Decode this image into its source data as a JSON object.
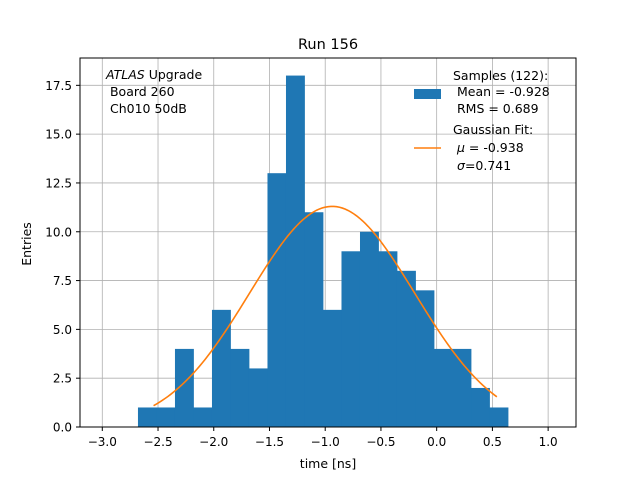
{
  "chart_data": {
    "type": "bar",
    "title": "Run 156",
    "xlabel": "time [ns]",
    "ylabel": "Entries",
    "xlim": [
      -3.2,
      1.25
    ],
    "ylim": [
      0,
      18.9
    ],
    "grid": true,
    "x_ticks": [
      -3.0,
      -2.5,
      -2.0,
      -1.5,
      -1.0,
      -0.5,
      0.0,
      0.5,
      1.0
    ],
    "x_tick_labels": [
      "−3.0",
      "−2.5",
      "−2.0",
      "−1.5",
      "−1.0",
      "−0.5",
      "0.0",
      "0.5",
      "1.0"
    ],
    "y_ticks": [
      0.0,
      2.5,
      5.0,
      7.5,
      10.0,
      12.5,
      15.0,
      17.5
    ],
    "y_tick_labels": [
      "0.0",
      "2.5",
      "5.0",
      "7.5",
      "10.0",
      "12.5",
      "15.0",
      "17.5"
    ],
    "bin_edges": [
      -2.68,
      -2.514,
      -2.348,
      -2.182,
      -2.016,
      -1.85,
      -1.684,
      -1.518,
      -1.352,
      -1.186,
      -1.02,
      -0.854,
      -0.688,
      -0.522,
      -0.356,
      -0.19,
      -0.024,
      0.142,
      0.308,
      0.474,
      0.64
    ],
    "histogram_counts": [
      1,
      1,
      4,
      1,
      6,
      4,
      3,
      13,
      18,
      11,
      6,
      9,
      10,
      9,
      8,
      7,
      4,
      4,
      2,
      1
    ],
    "fit": {
      "type": "gaussian",
      "mu": -0.938,
      "sigma": 0.741,
      "amplitude": 11.3,
      "x_range": [
        -2.54,
        0.54
      ]
    },
    "colors": {
      "histogram": "#1f77b4",
      "fit": "#ff7f0e",
      "grid": "#b0b0b0"
    },
    "annotation": {
      "experiment": "ATLAS",
      "experiment_suffix": " Upgrade",
      "line2": " Board 260",
      "line3": " Ch010 50dB"
    },
    "legend": {
      "placement": "top-right",
      "samples_title": "Samples (122):",
      "samples_mean": " Mean = -0.928",
      "samples_rms": " RMS = 0.689",
      "fit_title": "Gaussian Fit:",
      "fit_mu_symbol": "μ",
      "fit_mu_value": " = -0.938",
      "fit_sigma_symbol": "σ",
      "fit_sigma_value": "=0.741"
    }
  }
}
